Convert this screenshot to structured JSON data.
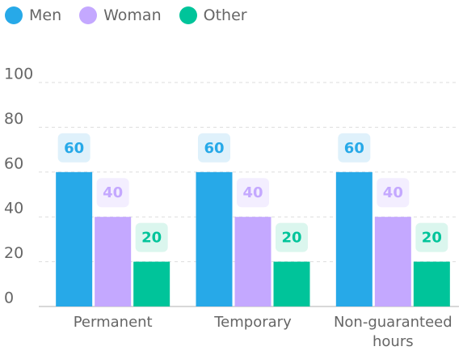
{
  "chart_data": {
    "type": "bar",
    "categories": [
      "Permanent",
      "Temporary",
      "Non-guaranteed hours"
    ],
    "series": [
      {
        "name": "Men",
        "color": "#27a9e8",
        "label_bg": "#dff1fb",
        "values": [
          60,
          60,
          60
        ]
      },
      {
        "name": "Woman",
        "color": "#c4a8ff",
        "label_bg": "#f3eeff",
        "values": [
          40,
          40,
          40
        ]
      },
      {
        "name": "Other",
        "color": "#00c49a",
        "label_bg": "#dbf6ee",
        "values": [
          20,
          20,
          20
        ]
      }
    ],
    "ylim": [
      0,
      100
    ],
    "yticks": [
      0,
      20,
      40,
      60,
      80,
      100
    ],
    "grid": true
  }
}
